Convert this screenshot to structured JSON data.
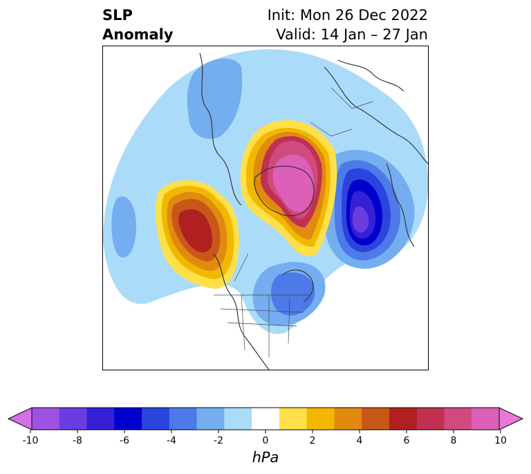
{
  "title": {
    "variable": "SLP",
    "variable_line2": "Anomaly",
    "init": "Init: Mon 26 Dec 2022",
    "valid": "Valid: 14 Jan – 27 Jan"
  },
  "colorbar": {
    "unit": "hPa",
    "ticks": [
      "-10",
      "-8",
      "-6",
      "-4",
      "-2",
      "0",
      "2",
      "4",
      "6",
      "8",
      "10"
    ],
    "colors": [
      "#d670e8",
      "#9f52e0",
      "#6a3de0",
      "#3520d6",
      "#0000cc",
      "#2b44dd",
      "#4d7ae8",
      "#74aef0",
      "#aadcfa",
      "#ffffff",
      "#ffe04a",
      "#f2b800",
      "#e08a10",
      "#c85818",
      "#b02020",
      "#c03050",
      "#d04a80",
      "#dc60b8",
      "#e878d8"
    ],
    "extend": "both"
  },
  "map": {
    "projection": "north-polar stereographic",
    "features": [
      "coastlines",
      "country borders",
      "US state borders"
    ]
  }
}
